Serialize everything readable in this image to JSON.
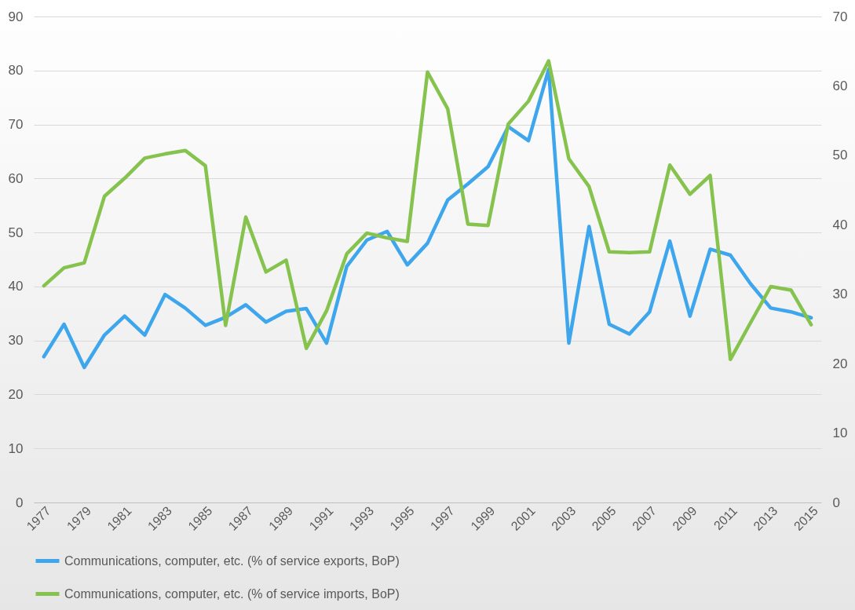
{
  "chart_data": {
    "type": "line",
    "categories": [
      "1977",
      null,
      "1979",
      null,
      "1981",
      null,
      "1983",
      null,
      "1985",
      null,
      "1987",
      null,
      "1989",
      null,
      "1991",
      null,
      "1993",
      null,
      "1995",
      null,
      "1997",
      null,
      "1999",
      null,
      "2001",
      null,
      "2003",
      null,
      "2005",
      null,
      "2007",
      null,
      "2009",
      null,
      "2011",
      null,
      "2013",
      null,
      "2015"
    ],
    "series": [
      {
        "name": "Communications, computer, etc. (% of service exports, BoP)",
        "color": "#3ea6ec",
        "values": [
          27,
          33,
          25,
          31,
          34.5,
          31,
          38.5,
          36,
          32.8,
          34.3,
          36.6,
          33.4,
          35.4,
          35.9,
          29.5,
          43.7,
          48.6,
          50.2,
          44,
          48,
          56,
          59,
          62.2,
          69.6,
          67,
          80.2,
          29.5,
          51.1,
          33,
          31.2,
          35.3,
          48.4,
          34.5,
          46.9,
          45.8,
          40.5,
          36,
          35.3,
          34.2
        ]
      },
      {
        "name": "Communications, computer, etc. (% of service imports, BoP)",
        "color": "#86c34e",
        "axis": "y2",
        "values": [
          31.2,
          33.8,
          34.5,
          44.1,
          46.7,
          49.6,
          50.2,
          50.7,
          48.5,
          25.5,
          41.1,
          33.2,
          34.9,
          22.2,
          27.6,
          35.8,
          38.8,
          38.1,
          37.6,
          62,
          56.7,
          40.1,
          39.9,
          54.5,
          57.8,
          63.6,
          49.5,
          45.5,
          36.1,
          36,
          36.1,
          48.6,
          44.4,
          47.1,
          20.6,
          25.9,
          31.1,
          30.6,
          25.6
        ]
      }
    ],
    "ylim": [
      0,
      90
    ],
    "yticks": [
      0,
      10,
      20,
      30,
      40,
      50,
      60,
      70,
      80,
      90
    ],
    "y2lim": [
      0,
      70
    ],
    "y2ticks": [
      0,
      10,
      20,
      30,
      40,
      50,
      60,
      70
    ],
    "grid": "y",
    "legend": "bottom"
  }
}
